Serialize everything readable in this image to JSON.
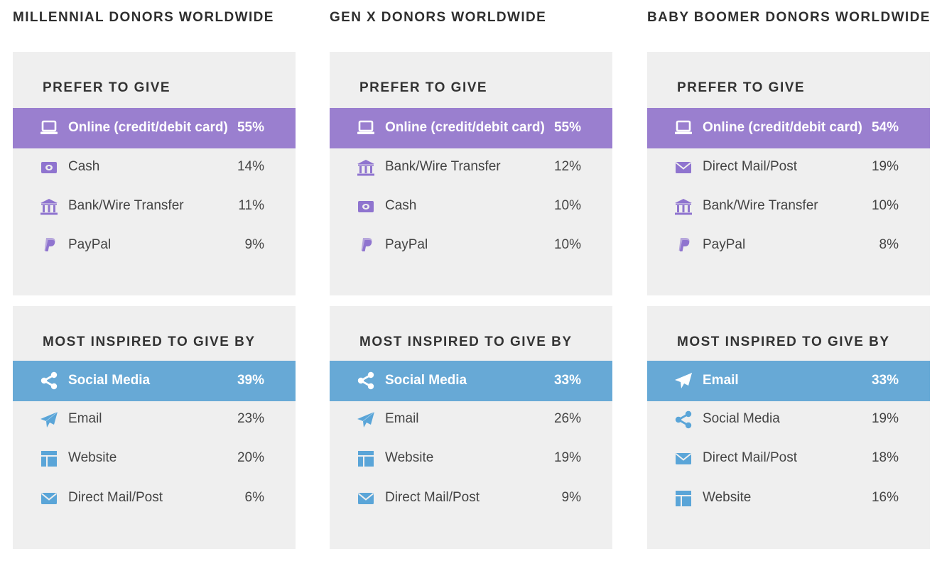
{
  "colors": {
    "panel_bg": "#efefef",
    "give_highlight": "#9a7fcf",
    "inspired_highlight": "#67a9d6",
    "icon_purple": "#8f74cf",
    "icon_blue": "#5aa5d8"
  },
  "chart_data": [
    {
      "type": "table",
      "title": "MILLENNIAL DONORS WORLDWIDE",
      "prefer": {
        "heading": "PREFER TO GIVE",
        "rows": [
          {
            "label": "Online (credit/debit card)",
            "value": "55%",
            "icon": "laptop-icon",
            "highlight": true
          },
          {
            "label": "Cash",
            "value": "14%",
            "icon": "cash-icon"
          },
          {
            "label": "Bank/Wire Transfer",
            "value": "11%",
            "icon": "bank-icon"
          },
          {
            "label": "PayPal",
            "value": "9%",
            "icon": "paypal-icon"
          }
        ]
      },
      "inspired": {
        "heading": "MOST INSPIRED TO GIVE BY",
        "rows": [
          {
            "label": "Social Media",
            "value": "39%",
            "icon": "share-icon",
            "highlight": true
          },
          {
            "label": "Email",
            "value": "23%",
            "icon": "paper-plane-icon"
          },
          {
            "label": "Website",
            "value": "20%",
            "icon": "website-icon"
          },
          {
            "label": "Direct Mail/Post",
            "value": "6%",
            "icon": "envelope-icon"
          }
        ]
      }
    },
    {
      "type": "table",
      "title": "GEN X DONORS WORLDWIDE",
      "prefer": {
        "heading": "PREFER TO GIVE",
        "rows": [
          {
            "label": "Online (credit/debit card)",
            "value": "55%",
            "icon": "laptop-icon",
            "highlight": true
          },
          {
            "label": "Bank/Wire Transfer",
            "value": "12%",
            "icon": "bank-icon"
          },
          {
            "label": "Cash",
            "value": "10%",
            "icon": "cash-icon"
          },
          {
            "label": "PayPal",
            "value": "10%",
            "icon": "paypal-icon"
          }
        ]
      },
      "inspired": {
        "heading": "MOST INSPIRED TO GIVE BY",
        "rows": [
          {
            "label": "Social Media",
            "value": "33%",
            "icon": "share-icon",
            "highlight": true
          },
          {
            "label": "Email",
            "value": "26%",
            "icon": "paper-plane-icon"
          },
          {
            "label": "Website",
            "value": "19%",
            "icon": "website-icon"
          },
          {
            "label": "Direct Mail/Post",
            "value": "9%",
            "icon": "envelope-icon"
          }
        ]
      }
    },
    {
      "type": "table",
      "title": "BABY BOOMER DONORS WORLDWIDE",
      "prefer": {
        "heading": "PREFER TO GIVE",
        "rows": [
          {
            "label": "Online (credit/debit card)",
            "value": "54%",
            "icon": "laptop-icon",
            "highlight": true
          },
          {
            "label": "Direct Mail/Post",
            "value": "19%",
            "icon": "envelope-icon"
          },
          {
            "label": "Bank/Wire Transfer",
            "value": "10%",
            "icon": "bank-icon"
          },
          {
            "label": "PayPal",
            "value": "8%",
            "icon": "paypal-icon"
          }
        ]
      },
      "inspired": {
        "heading": "MOST INSPIRED TO GIVE BY",
        "rows": [
          {
            "label": "Email",
            "value": "33%",
            "icon": "paper-plane-icon",
            "highlight": true
          },
          {
            "label": "Social Media",
            "value": "19%",
            "icon": "share-icon"
          },
          {
            "label": "Direct Mail/Post",
            "value": "18%",
            "icon": "envelope-icon"
          },
          {
            "label": "Website",
            "value": "16%",
            "icon": "website-icon"
          }
        ]
      }
    }
  ]
}
